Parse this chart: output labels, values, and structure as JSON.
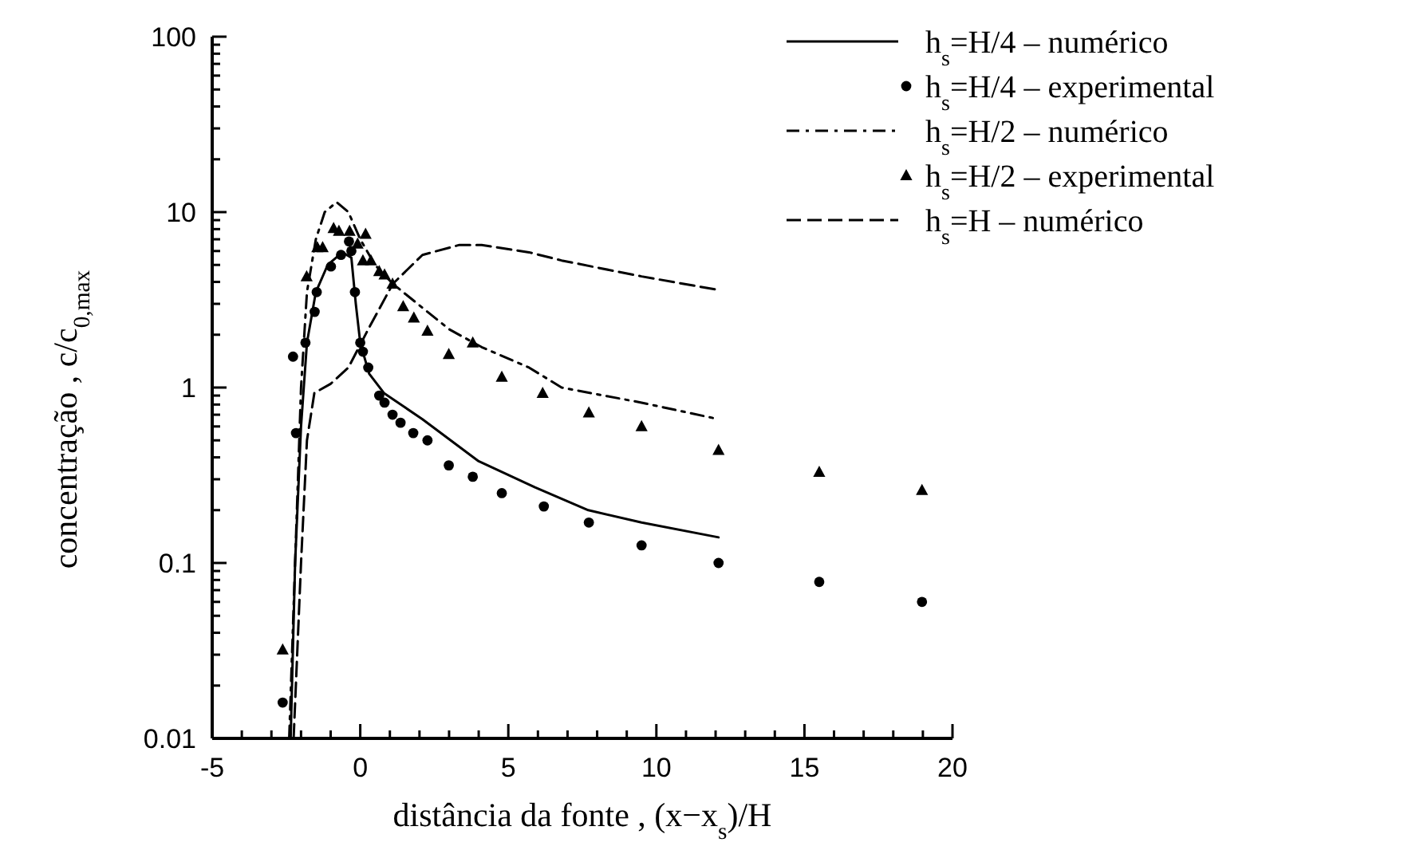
{
  "chart_data": {
    "type": "line",
    "xlabel": "distância da fonte , (x−x$_{s}$)/H",
    "ylabel": "concentração , c/c$_{0,max}$",
    "log": "y",
    "xlim": [
      -5,
      20
    ],
    "ylim": [
      0.01,
      100
    ],
    "xticks": [
      -5,
      {
        "value": -4,
        "label": null
      },
      {
        "value": -3,
        "label": null
      },
      {
        "value": -2,
        "label": null
      },
      {
        "value": -1,
        "label": null
      },
      0,
      {
        "value": 1,
        "label": null
      },
      {
        "value": 2,
        "label": null
      },
      {
        "value": 3,
        "label": null
      },
      {
        "value": 4,
        "label": null
      },
      5,
      {
        "value": 6,
        "label": null
      },
      {
        "value": 7,
        "label": null
      },
      {
        "value": 8,
        "label": null
      },
      {
        "value": 9,
        "label": null
      },
      10,
      {
        "value": 11,
        "label": null
      },
      {
        "value": 12,
        "label": null
      },
      {
        "value": 13,
        "label": null
      },
      {
        "value": 14,
        "label": null
      },
      15,
      {
        "value": 16,
        "label": null
      },
      {
        "value": 17,
        "label": null
      },
      {
        "value": 18,
        "label": null
      },
      {
        "value": 19,
        "label": null
      },
      20
    ],
    "yticks": [
      0.01,
      {
        "value": 0.02,
        "label": null
      },
      {
        "value": 0.03,
        "label": null
      },
      {
        "value": 0.04,
        "label": null
      },
      {
        "value": 0.05,
        "label": null
      },
      {
        "value": 0.06,
        "label": null
      },
      {
        "value": 0.07,
        "label": null
      },
      {
        "value": 0.08,
        "label": null
      },
      {
        "value": 0.09,
        "label": null
      },
      0.1,
      {
        "value": 0.2,
        "label": null
      },
      {
        "value": 0.3,
        "label": null
      },
      {
        "value": 0.4,
        "label": null
      },
      {
        "value": 0.5,
        "label": null
      },
      {
        "value": 0.6,
        "label": null
      },
      {
        "value": 0.7,
        "label": null
      },
      {
        "value": 0.8,
        "label": null
      },
      {
        "value": 0.9,
        "label": null
      },
      1,
      {
        "value": 2,
        "label": null
      },
      {
        "value": 3,
        "label": null
      },
      {
        "value": 4,
        "label": null
      },
      {
        "value": 5,
        "label": null
      },
      {
        "value": 6,
        "label": null
      },
      {
        "value": 7,
        "label": null
      },
      {
        "value": 8,
        "label": null
      },
      {
        "value": 9,
        "label": null
      },
      10,
      {
        "value": 20,
        "label": null
      },
      {
        "value": 30,
        "label": null
      },
      {
        "value": 40,
        "label": null
      },
      {
        "value": 50,
        "label": null
      },
      {
        "value": 60,
        "label": null
      },
      {
        "value": 70,
        "label": null
      },
      {
        "value": 80,
        "label": null
      },
      {
        "value": 90,
        "label": null
      },
      100
    ],
    "grid": false,
    "legend": "top right",
    "series": [
      {
        "name": "h$_{s}$=H/4 – numérico",
        "line_style": "solid",
        "marker": "none",
        "color": "#000000",
        "x": [
          -2.35,
          -2.2,
          -2.0,
          -1.8,
          -1.5,
          -1.1,
          -0.6,
          -0.3,
          -0.15,
          0,
          0.3,
          0.8,
          2.1,
          4,
          5.9,
          7.7,
          9.5,
          12.1
        ],
        "values": [
          0.01,
          0.1,
          0.6,
          1.8,
          3.5,
          5,
          5.9,
          5.5,
          3,
          1.8,
          1.2,
          0.93,
          0.66,
          0.38,
          0.27,
          0.2,
          0.17,
          0.14
        ]
      },
      {
        "name": "h$_{s}$=H/4 – experimental",
        "type": "scatter",
        "marker": "circle",
        "color": "#000000",
        "x": [
          -2.62,
          -2.27,
          -2.17,
          -1.85,
          -1.54,
          -1.47,
          -0.99,
          -0.65,
          -0.38,
          -0.3,
          -0.18,
          0,
          0.09,
          0.27,
          0.64,
          0.82,
          1.09,
          1.36,
          1.79,
          2.27,
          2.99,
          3.8,
          4.78,
          6.2,
          7.72,
          9.5,
          12.1,
          15.5,
          18.97
        ],
        "values": [
          0.016,
          1.5,
          0.55,
          1.8,
          2.7,
          3.5,
          4.9,
          5.7,
          6.8,
          6,
          3.5,
          1.8,
          1.6,
          1.3,
          0.9,
          0.82,
          0.7,
          0.63,
          0.55,
          0.5,
          0.36,
          0.31,
          0.25,
          0.21,
          0.17,
          0.126,
          0.1,
          0.078,
          0.06
        ]
      },
      {
        "name": "h$_{s}$=H/2 – numérico",
        "line_style": "dashdot",
        "marker": "none",
        "color": "#000000",
        "x": [
          -2.4,
          -2.2,
          -2.0,
          -1.8,
          -1.5,
          -1.2,
          -0.8,
          -0.4,
          0,
          0.5,
          1.1,
          3,
          4.1,
          5.7,
          6.8,
          9.5,
          12.1
        ],
        "values": [
          0.01,
          0.1,
          1,
          3.5,
          7,
          10,
          11.4,
          10,
          7,
          5,
          3.9,
          2.15,
          1.7,
          1.3,
          1.0,
          0.82,
          0.66
        ]
      },
      {
        "name": "h$_{s}$=H/2 – experimental",
        "type": "scatter",
        "marker": "triangle",
        "color": "#000000",
        "x": [
          -2.62,
          -1.81,
          -1.45,
          -1.27,
          -0.9,
          -0.72,
          -0.36,
          -0.09,
          0.09,
          0.18,
          0.36,
          0.64,
          0.82,
          1.09,
          1.45,
          1.81,
          2.27,
          2.99,
          3.8,
          4.78,
          6.16,
          7.72,
          9.5,
          12.1,
          15.5,
          18.97
        ],
        "values": [
          0.032,
          4.3,
          6.3,
          6.3,
          8.1,
          7.8,
          7.8,
          6.6,
          5.3,
          7.5,
          5.3,
          4.6,
          4.4,
          3.9,
          2.9,
          2.5,
          2.1,
          1.55,
          1.8,
          1.15,
          0.93,
          0.72,
          0.6,
          0.44,
          0.33,
          0.26
        ]
      },
      {
        "name": "h$_{s}$=H – numérico",
        "line_style": "dashed",
        "marker": "none",
        "color": "#000000",
        "x": [
          -2.25,
          -2.0,
          -1.8,
          -1.55,
          -1.0,
          -0.4,
          0.27,
          1.1,
          2.1,
          3.35,
          4.1,
          5.7,
          6.8,
          9.5,
          12.1
        ],
        "values": [
          0.01,
          0.1,
          0.5,
          0.93,
          1.05,
          1.3,
          2.15,
          3.9,
          5.7,
          6.5,
          6.5,
          5.9,
          5.3,
          4.3,
          3.6
        ]
      }
    ]
  }
}
